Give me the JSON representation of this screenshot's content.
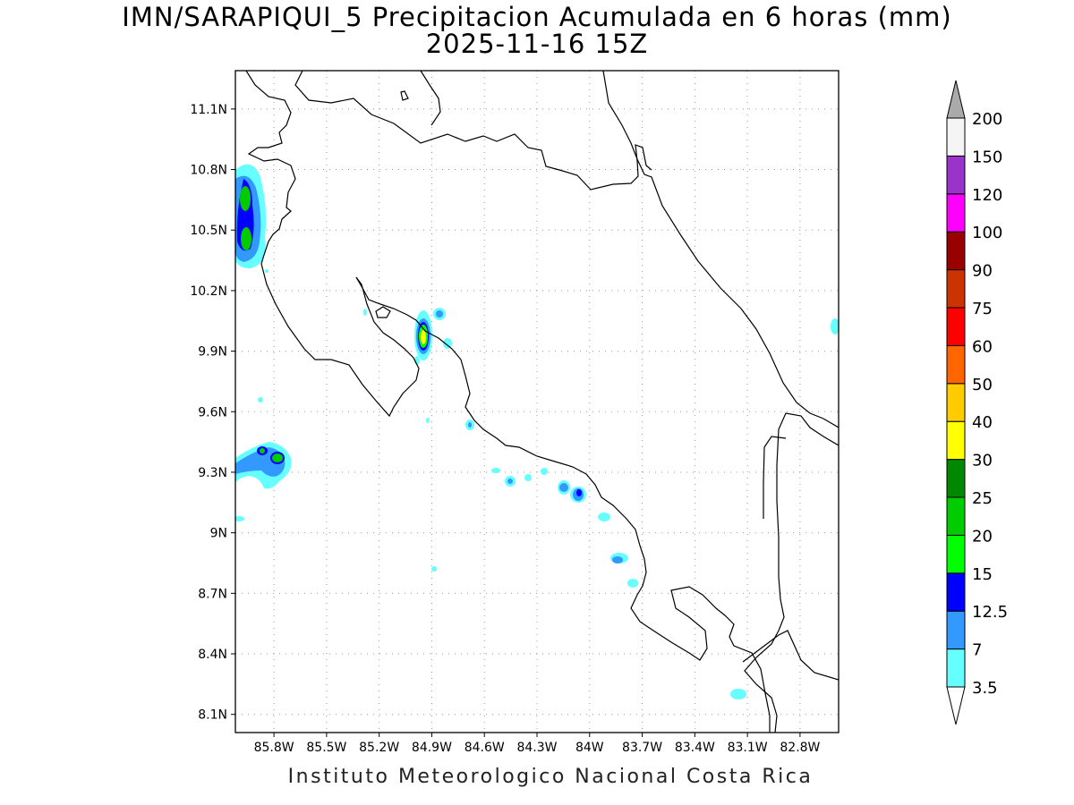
{
  "title": {
    "line1": "IMN/SARAPIQUI_5 Precipitacion Acumulada en 6 horas (mm)",
    "line2": "2025-11-16 15Z"
  },
  "footer": "Instituto Meteorologico Nacional Costa Rica",
  "map": {
    "lon_range": [
      -86.02,
      -82.58
    ],
    "lat_range": [
      8.01,
      11.29
    ],
    "lat_ticks": [
      {
        "value": 8.1,
        "label": "8.1N"
      },
      {
        "value": 8.4,
        "label": "8.4N"
      },
      {
        "value": 8.7,
        "label": "8.7N"
      },
      {
        "value": 9.0,
        "label": "9N"
      },
      {
        "value": 9.3,
        "label": "9.3N"
      },
      {
        "value": 9.6,
        "label": "9.6N"
      },
      {
        "value": 9.9,
        "label": "9.9N"
      },
      {
        "value": 10.2,
        "label": "10.2N"
      },
      {
        "value": 10.5,
        "label": "10.5N"
      },
      {
        "value": 10.8,
        "label": "10.8N"
      },
      {
        "value": 11.1,
        "label": "11.1N"
      }
    ],
    "lon_ticks": [
      {
        "value": -85.8,
        "label": "85.8W"
      },
      {
        "value": -85.5,
        "label": "85.5W"
      },
      {
        "value": -85.2,
        "label": "85.2W"
      },
      {
        "value": -84.9,
        "label": "84.9W"
      },
      {
        "value": -84.6,
        "label": "84.6W"
      },
      {
        "value": -84.3,
        "label": "84.3W"
      },
      {
        "value": -84.0,
        "label": "84W"
      },
      {
        "value": -83.7,
        "label": "83.7W"
      },
      {
        "value": -83.4,
        "label": "83.4W"
      },
      {
        "value": -83.1,
        "label": "83.1W"
      },
      {
        "value": -82.8,
        "label": "82.8W"
      }
    ],
    "grid": "dotted"
  },
  "colorbar": {
    "colors": [
      "#ffffff",
      "#66ffff",
      "#3399ff",
      "#0000ff",
      "#00ff00",
      "#00cc00",
      "#008800",
      "#ffff00",
      "#ffcc00",
      "#ff6600",
      "#ff0000",
      "#cc3300",
      "#990000",
      "#ff00ff",
      "#9933cc",
      "#f5f5f5",
      "#aaaaaa"
    ],
    "labels": [
      "3.5",
      "7",
      "12.5",
      "15",
      "20",
      "25",
      "30",
      "40",
      "50",
      "60",
      "75",
      "90",
      "100",
      "120",
      "150",
      "200"
    ]
  }
}
